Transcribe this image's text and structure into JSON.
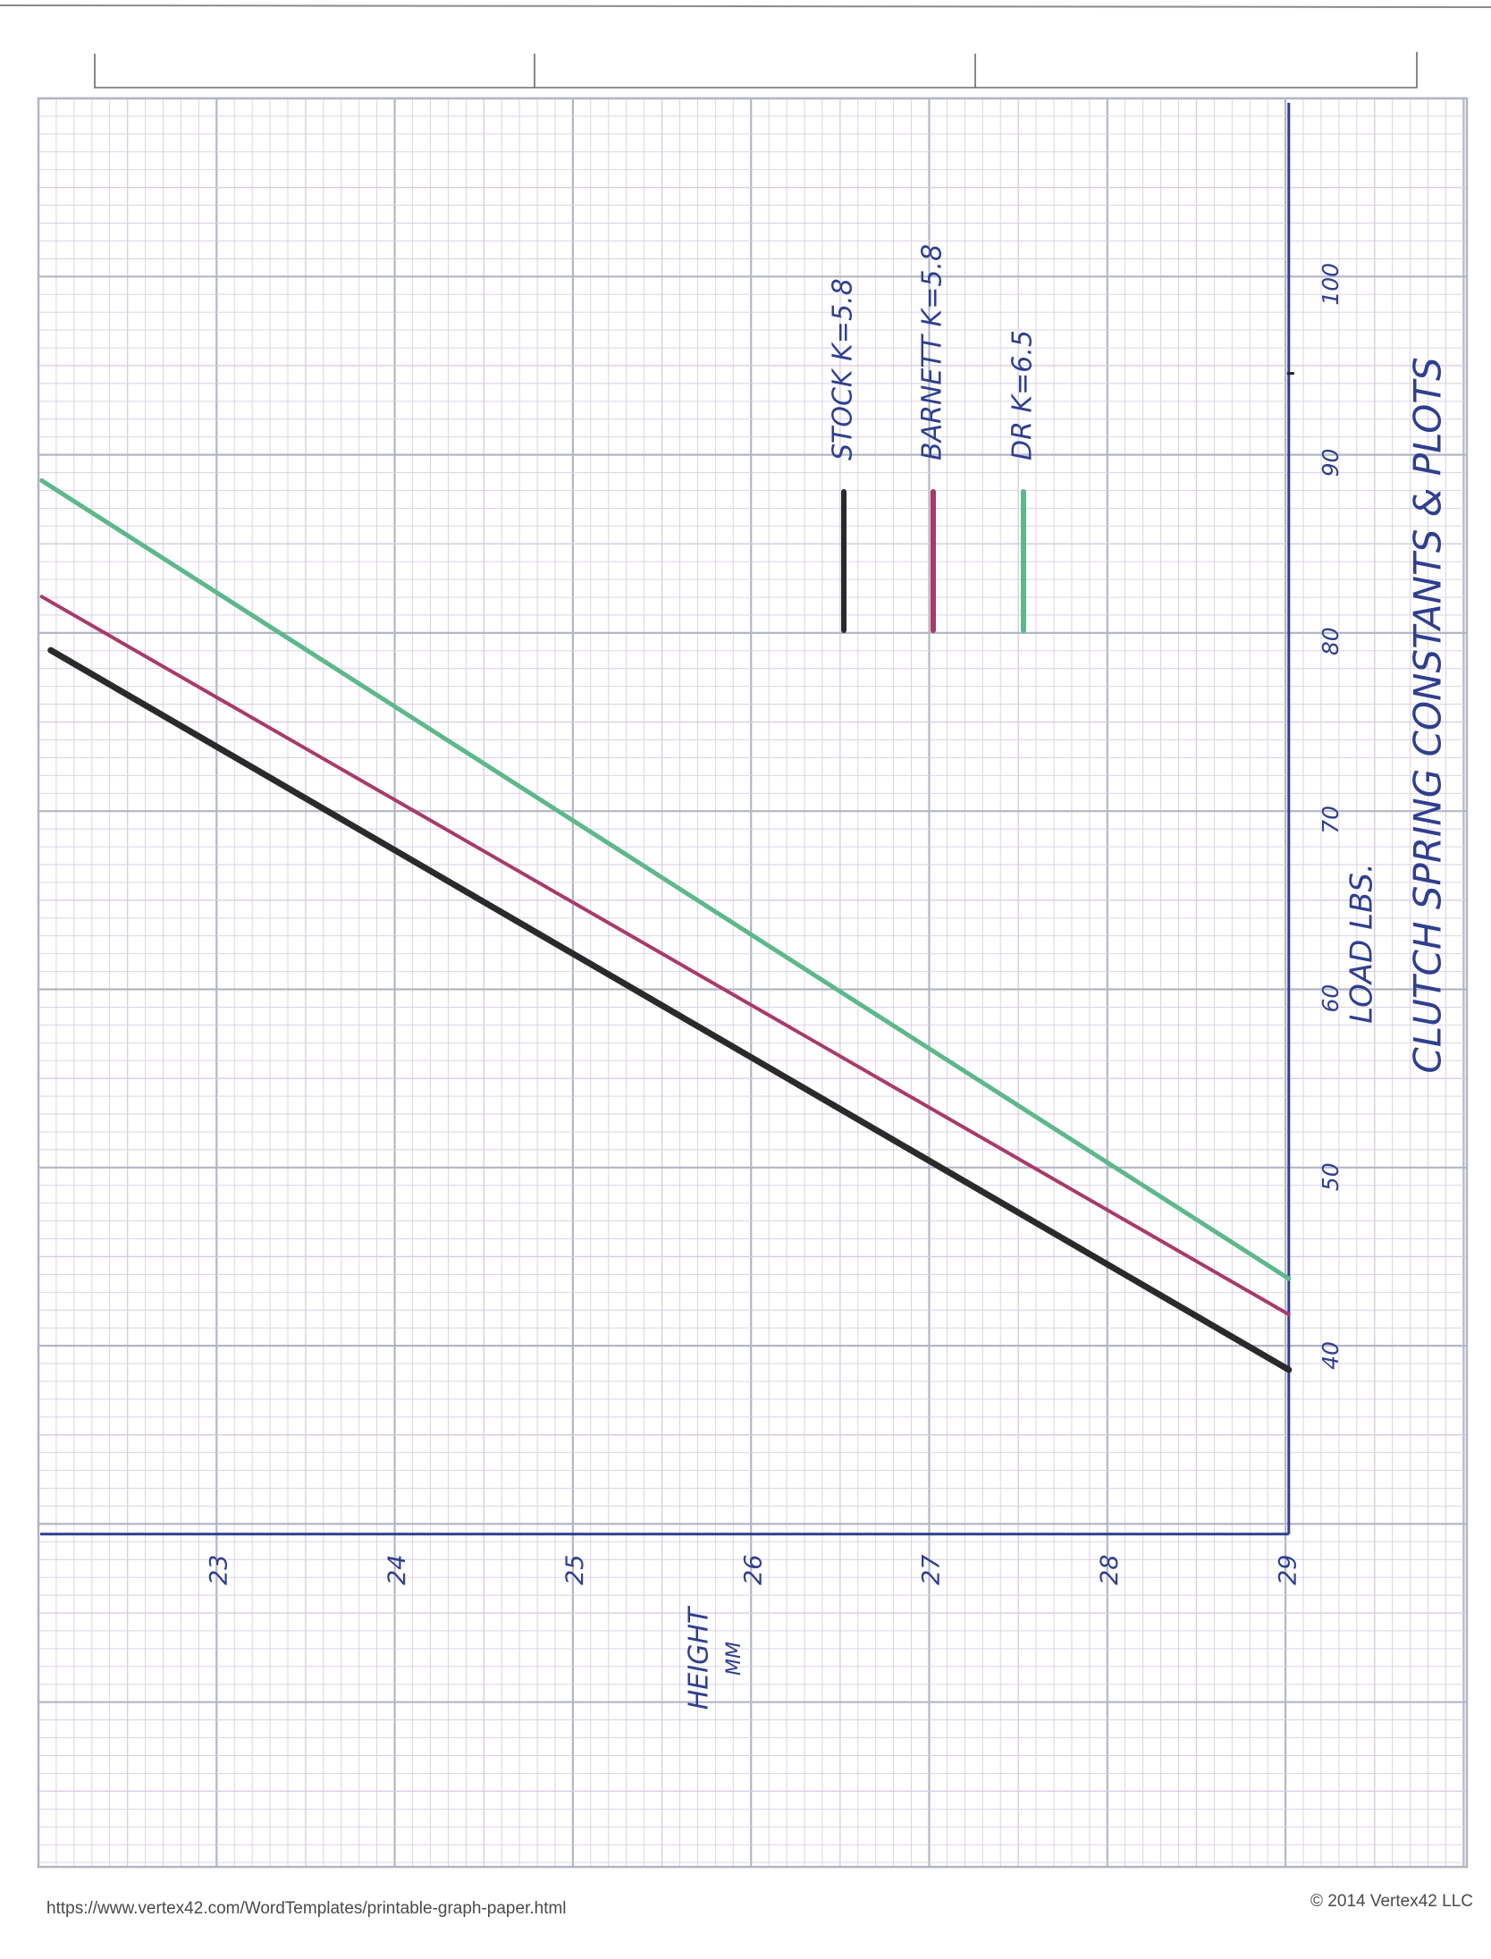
{
  "footer": {
    "url": "https://www.vertex42.com/WordTemplates/printable-graph-paper.html",
    "copyright": "© 2014 Vertex42 LLC"
  },
  "colors": {
    "paper_minor": "#d9cde2",
    "paper_major": "#b3b6c4",
    "axis_ink": "#2f3f8f"
  },
  "chart_data": {
    "type": "line",
    "title": "CLUTCH SPRING CONSTANTS & PLOTS",
    "xlabel": "HEIGHT",
    "xlabel_unit": "MM",
    "ylabel": "LOAD LBS.",
    "x_ticks": [
      "23",
      "24",
      "25",
      "26",
      "27",
      "28",
      "29"
    ],
    "y_ticks": [
      "40",
      "50",
      "60",
      "70",
      "80",
      "90",
      "100"
    ],
    "xlim": [
      22,
      29
    ],
    "ylim": [
      30,
      110
    ],
    "orientation": "rotated 90° (page read in landscape)",
    "grid": true,
    "legend_position": "top-center",
    "series": [
      {
        "name": "STOCK K=5.8",
        "color": "#2a2a2a",
        "x": [
          22.05,
          29.0
        ],
        "y": [
          79.5,
          39.2
        ]
      },
      {
        "name": "BARNETT K=5.8",
        "color": "#a83a6a",
        "x": [
          22.0,
          29.0
        ],
        "y": [
          82.5,
          42.3
        ]
      },
      {
        "name": "DR K=6.5",
        "color": "#5db88a",
        "x": [
          22.0,
          29.0
        ],
        "y": [
          89.0,
          44.3
        ]
      }
    ]
  }
}
